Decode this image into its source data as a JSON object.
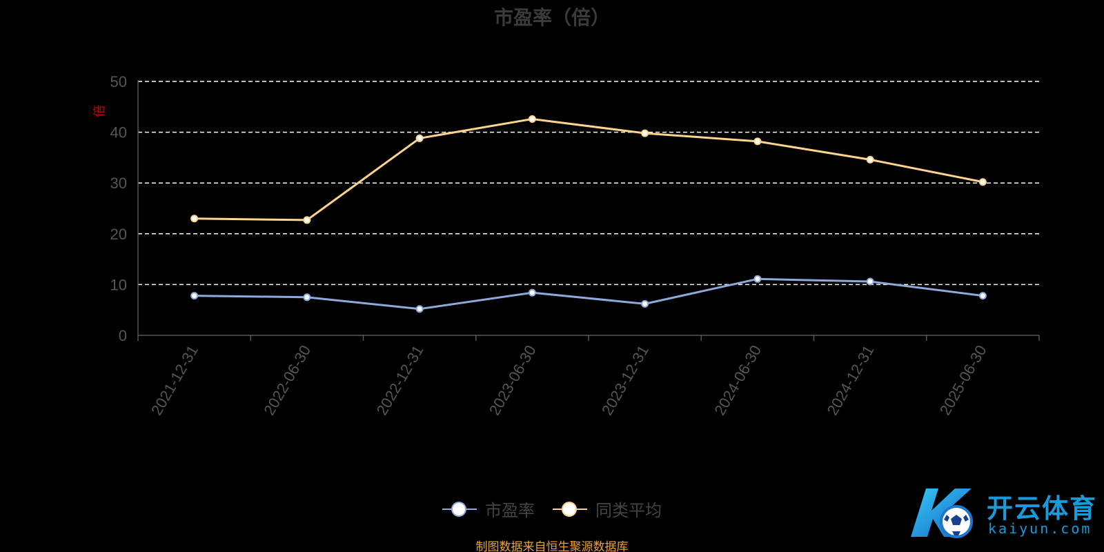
{
  "chart_data": {
    "type": "line",
    "title": "市盈率（倍）",
    "ylabel": "倍",
    "ylim": [
      0,
      50
    ],
    "yticks": [
      0,
      10,
      20,
      30,
      40,
      50
    ],
    "categories": [
      "2021-12-31",
      "2022-06-30",
      "2022-12-31",
      "2023-06-30",
      "2023-12-31",
      "2024-06-30",
      "2024-12-31",
      "2025-06-30"
    ],
    "grid": true,
    "legend_position": "bottom-center",
    "series": [
      {
        "name": "市盈率",
        "color": "#8eaadb",
        "values": [
          7.8,
          7.5,
          5.2,
          8.4,
          6.2,
          11.1,
          10.6,
          7.8
        ]
      },
      {
        "name": "同类平均",
        "color": "#ffd58e",
        "values": [
          23.0,
          22.7,
          38.8,
          42.6,
          39.8,
          38.2,
          34.6,
          30.2
        ]
      }
    ]
  },
  "footer": {
    "source": "制图数据来自恒生聚源数据库"
  },
  "brand": {
    "name": "开云体育",
    "domain": "kaiyun.com",
    "logo_icon": "k-soccer-ball-logo"
  },
  "colors": {
    "background": "#000000",
    "grid": "#ffffff",
    "title": "#3b3b3b",
    "source_text": "#e8a33b",
    "brand": "#1a9ad8"
  }
}
